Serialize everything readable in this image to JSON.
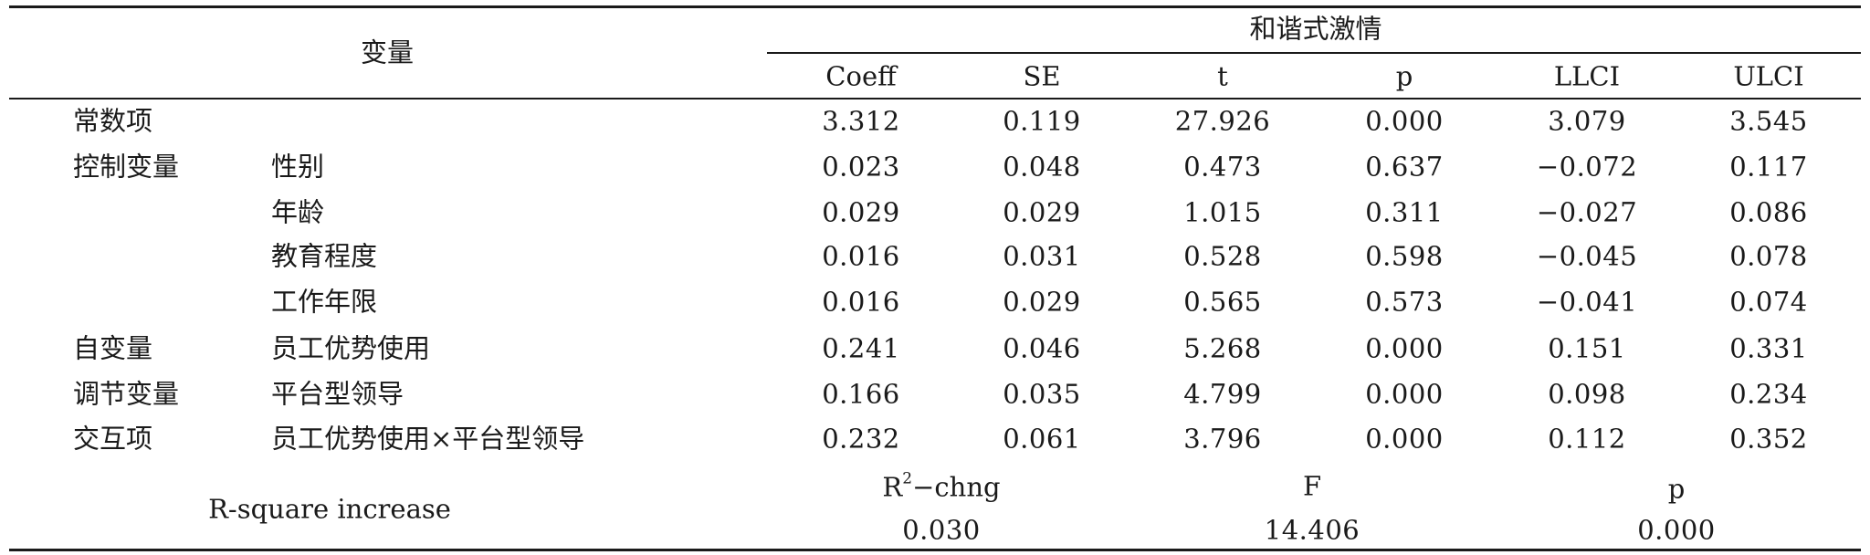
{
  "header": {
    "variable": "变量",
    "group": "和谐式激情",
    "columns": [
      "Coeff",
      "SE",
      "t",
      "p",
      "LLCI",
      "ULCI"
    ]
  },
  "rows": [
    {
      "category": "常数项",
      "variable": "",
      "values": [
        "3.312",
        "0.119",
        "27.926",
        "0.000",
        "3.079",
        "3.545"
      ]
    },
    {
      "category": "控制变量",
      "variable": "性别",
      "values": [
        "0.023",
        "0.048",
        "0.473",
        "0.637",
        "−0.072",
        "0.117"
      ]
    },
    {
      "category": "",
      "variable": "年龄",
      "values": [
        "0.029",
        "0.029",
        "1.015",
        "0.311",
        "−0.027",
        "0.086"
      ]
    },
    {
      "category": "",
      "variable": "教育程度",
      "values": [
        "0.016",
        "0.031",
        "0.528",
        "0.598",
        "−0.045",
        "0.078"
      ]
    },
    {
      "category": "",
      "variable": "工作年限",
      "values": [
        "0.016",
        "0.029",
        "0.565",
        "0.573",
        "−0.041",
        "0.074"
      ]
    },
    {
      "category": "自变量",
      "variable": "员工优势使用",
      "values": [
        "0.241",
        "0.046",
        "5.268",
        "0.000",
        "0.151",
        "0.331"
      ]
    },
    {
      "category": "调节变量",
      "variable": "平台型领导",
      "values": [
        "0.166",
        "0.035",
        "4.799",
        "0.000",
        "0.098",
        "0.234"
      ]
    },
    {
      "category": "交互项",
      "variable": "员工优势使用×平台型领导",
      "values": [
        "0.232",
        "0.061",
        "3.796",
        "0.000",
        "0.112",
        "0.352"
      ]
    }
  ],
  "footer": {
    "label": "R-square increase",
    "r2_prefix": "R",
    "r2_sup": "2",
    "r2_suffix": "−chng",
    "f_label": "F",
    "p_label": "p",
    "r2_value": "0.030",
    "f_value": "14.406",
    "p_value": "0.000"
  }
}
